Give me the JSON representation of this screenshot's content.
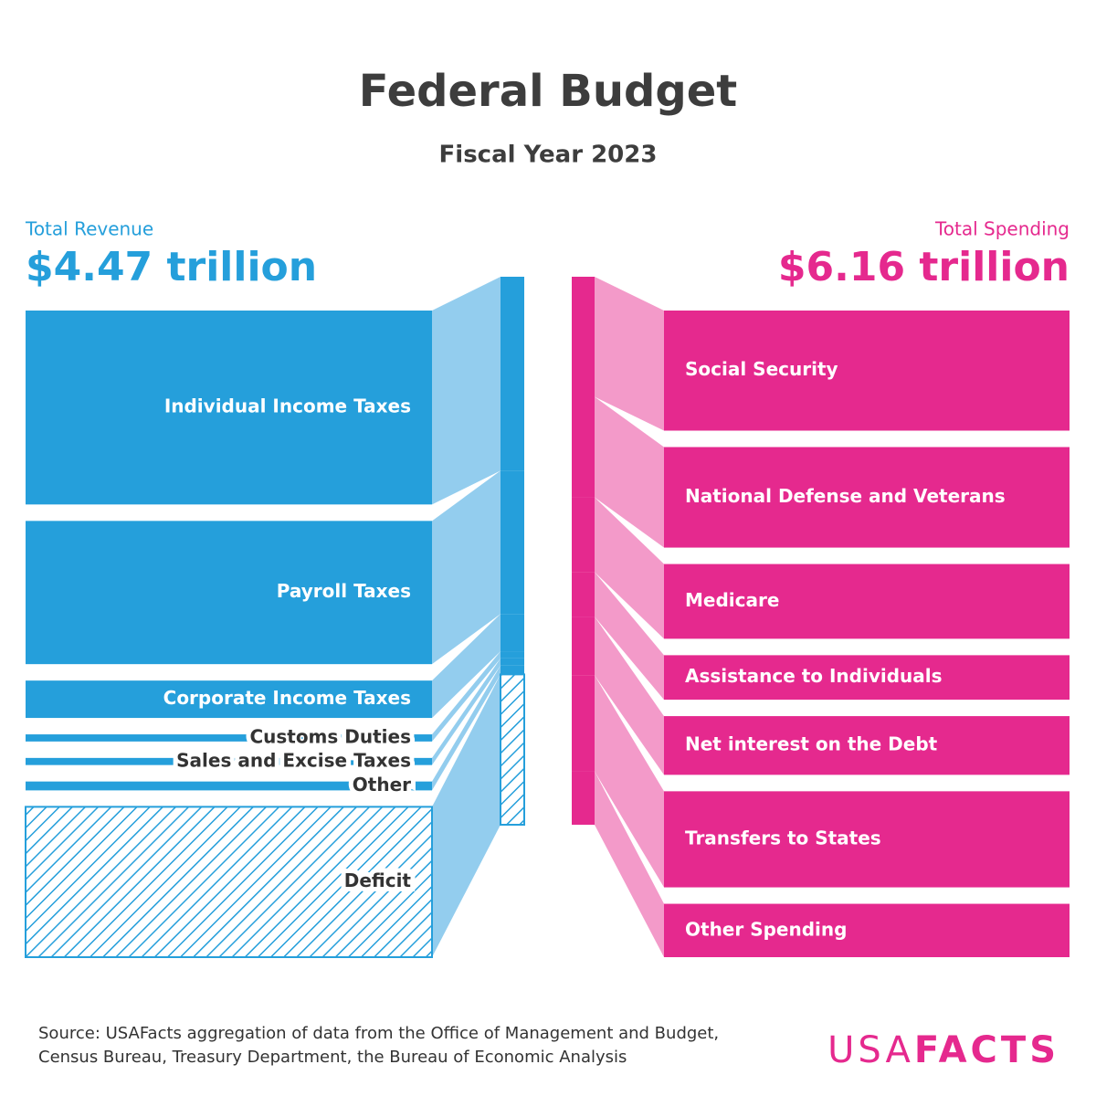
{
  "chart_data": {
    "type": "sankey",
    "title": "Federal Budget",
    "subtitle": "Fiscal Year 2023",
    "revenue": {
      "label": "Total Revenue",
      "total": "$4.47 trillion",
      "color": "#259fdb",
      "flow_color": "#93cdee",
      "categories": [
        "Individual Income Taxes",
        "Payroll Taxes",
        "Corporate Income Taxes",
        "Customs Duties",
        "Sales and Excise Taxes",
        "Other"
      ],
      "values": [
        2.18,
        1.61,
        0.42,
        0.08,
        0.08,
        0.1
      ]
    },
    "deficit": {
      "label": "Deficit",
      "value": 1.69
    },
    "spending": {
      "label": "Total Spending",
      "total": "$6.16 trillion",
      "color": "#e5298e",
      "flow_color": "#f39ac9",
      "categories": [
        "Social Security",
        "National Defense and Veterans",
        "Medicare",
        "Assistance to Individuals",
        "Net interest on the Debt",
        "Transfers to States",
        "Other Spending"
      ],
      "values": [
        1.35,
        1.13,
        0.84,
        0.5,
        0.66,
        1.08,
        0.6
      ]
    },
    "source": [
      "Source: USAFacts aggregation of data from the Office of Management and Budget,",
      "Census Bureau, Treasury Department, the Bureau of Economic Analysis"
    ],
    "brand": [
      "USA",
      "FACTS"
    ]
  }
}
